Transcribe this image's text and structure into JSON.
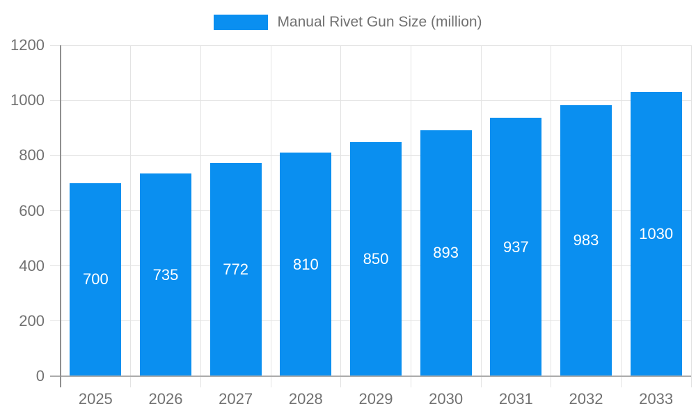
{
  "chart_data": {
    "type": "bar",
    "title": "Manual Rivet Gun Size (million)",
    "categories": [
      "2025",
      "2026",
      "2027",
      "2028",
      "2029",
      "2030",
      "2031",
      "2032",
      "2033"
    ],
    "values": [
      700,
      735,
      772,
      810,
      850,
      893,
      937,
      983,
      1030
    ],
    "xlabel": "",
    "ylabel": "",
    "ylim": [
      0,
      1200
    ],
    "yticks": [
      0,
      200,
      400,
      600,
      800,
      1000,
      1200
    ],
    "grid": true,
    "legend_position": "top-center",
    "bar_color": "#0a8ff0",
    "bar_label_color": "#ffffff",
    "axis_text_color": "#717171"
  }
}
